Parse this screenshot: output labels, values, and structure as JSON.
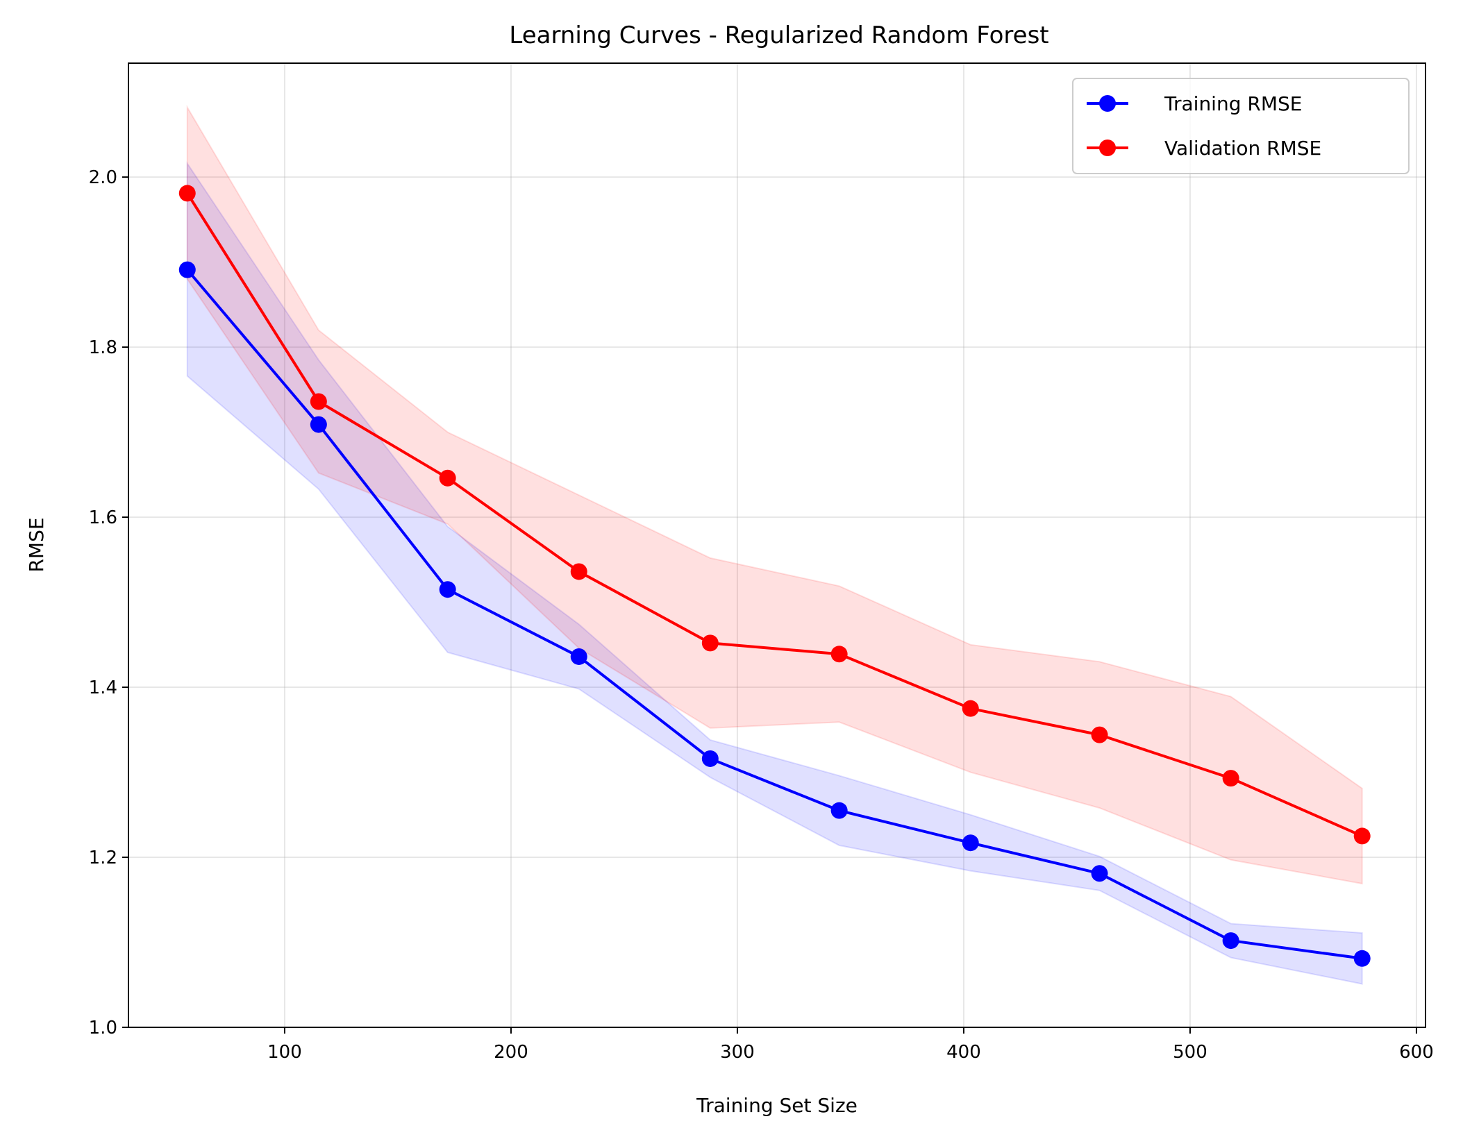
{
  "chart_data": {
    "type": "line",
    "title": "Learning Curves - Regularized Random Forest",
    "xlabel": "Training Set Size",
    "ylabel": "RMSE",
    "xlim": [
      31,
      604
    ],
    "ylim": [
      1.0,
      2.134
    ],
    "xticks": [
      100,
      200,
      300,
      400,
      500,
      600
    ],
    "yticks": [
      1.0,
      1.2,
      1.4,
      1.6,
      1.8,
      2.0
    ],
    "xtick_labels": [
      "100",
      "200",
      "300",
      "400",
      "500",
      "600"
    ],
    "ytick_labels": [
      "1.0",
      "1.2",
      "1.4",
      "1.6",
      "1.8",
      "2.0"
    ],
    "grid": true,
    "legend_position": "top-right",
    "x": [
      57,
      115,
      172,
      230,
      288,
      345,
      403,
      460,
      518,
      576
    ],
    "series": [
      {
        "name": "Training RMSE",
        "color": "#0000ff",
        "values": [
          1.891,
          1.709,
          1.515,
          1.436,
          1.316,
          1.255,
          1.217,
          1.181,
          1.102,
          1.081
        ],
        "lower": [
          1.766,
          1.633,
          1.441,
          1.398,
          1.294,
          1.214,
          1.184,
          1.161,
          1.082,
          1.051
        ],
        "upper": [
          2.016,
          1.785,
          1.589,
          1.474,
          1.338,
          1.296,
          1.25,
          1.201,
          1.122,
          1.111
        ]
      },
      {
        "name": "Validation RMSE",
        "color": "#ff0000",
        "values": [
          1.981,
          1.736,
          1.646,
          1.536,
          1.452,
          1.439,
          1.375,
          1.344,
          1.293,
          1.225
        ],
        "lower": [
          1.88,
          1.652,
          1.592,
          1.446,
          1.352,
          1.359,
          1.3,
          1.258,
          1.197,
          1.169
        ],
        "upper": [
          2.082,
          1.82,
          1.7,
          1.626,
          1.552,
          1.519,
          1.45,
          1.43,
          1.389,
          1.281
        ]
      }
    ]
  }
}
